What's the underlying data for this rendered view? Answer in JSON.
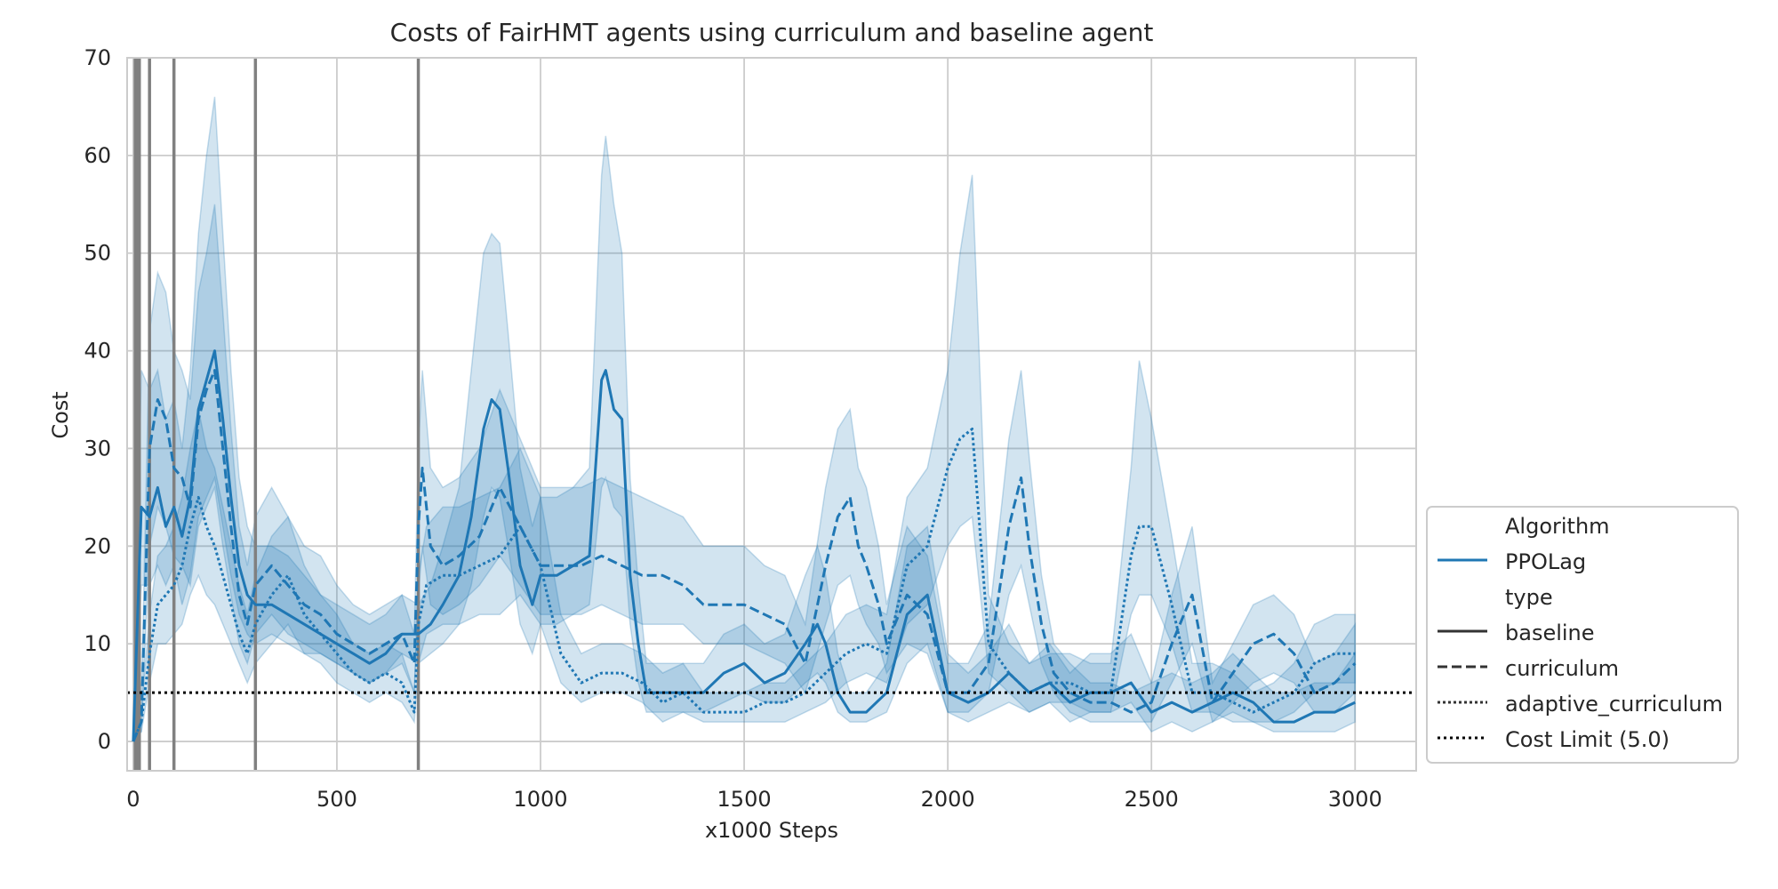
{
  "chart_data": {
    "type": "line",
    "title": "Costs of FairHMT agents using curriculum and baseline agent",
    "xlabel": "x1000 Steps",
    "ylabel": "Cost",
    "xlim": [
      -15,
      3150
    ],
    "ylim": [
      -3,
      70
    ],
    "xticks": [
      0,
      500,
      1000,
      1500,
      2000,
      2500,
      3000
    ],
    "yticks": [
      0,
      10,
      20,
      30,
      40,
      50,
      60,
      70
    ],
    "grid": true,
    "legend_position": "lower-right, outside plot",
    "colors": {
      "series": "#1f77b4",
      "band": "#1f77b4",
      "vlines": "#808080",
      "cost_limit": "#000000"
    },
    "cost_limit": 5.0,
    "vertical_lines_x": [
      5,
      10,
      15,
      40,
      100,
      300,
      700
    ],
    "legend": {
      "algorithm_heading": "Algorithm",
      "algorithm_entries": [
        "PPOLag"
      ],
      "type_heading": "type",
      "type_entries": [
        "baseline",
        "curriculum",
        "adaptive_curriculum"
      ],
      "cost_limit_entry": "Cost Limit (5.0)"
    },
    "series": [
      {
        "name": "baseline",
        "line_style": "solid",
        "x": [
          0,
          20,
          40,
          60,
          80,
          100,
          120,
          140,
          160,
          180,
          200,
          220,
          240,
          260,
          280,
          300,
          340,
          380,
          420,
          460,
          500,
          540,
          580,
          620,
          660,
          700,
          730,
          760,
          800,
          830,
          860,
          880,
          900,
          920,
          950,
          980,
          1000,
          1040,
          1080,
          1120,
          1150,
          1160,
          1180,
          1200,
          1220,
          1240,
          1260,
          1300,
          1350,
          1400,
          1450,
          1500,
          1550,
          1600,
          1650,
          1680,
          1700,
          1730,
          1760,
          1800,
          1850,
          1900,
          1950,
          2000,
          2050,
          2100,
          2150,
          2200,
          2250,
          2300,
          2350,
          2400,
          2450,
          2500,
          2550,
          2600,
          2650,
          2700,
          2750,
          2800,
          2850,
          2900,
          2950,
          3000
        ],
        "y": [
          0,
          24,
          23,
          26,
          22,
          24,
          21,
          25,
          34,
          37,
          40,
          33,
          25,
          18,
          15,
          14,
          14,
          13,
          12,
          11,
          10,
          9,
          8,
          9,
          11,
          11,
          12,
          14,
          17,
          23,
          32,
          35,
          34,
          28,
          18,
          14,
          17,
          17,
          18,
          19,
          37,
          38,
          34,
          33,
          17,
          10,
          5,
          5,
          5,
          5,
          7,
          8,
          6,
          7,
          10,
          12,
          10,
          5,
          3,
          3,
          5,
          13,
          15,
          5,
          4,
          5,
          7,
          5,
          6,
          4,
          5,
          5,
          6,
          3,
          4,
          3,
          4,
          5,
          4,
          2,
          2,
          3,
          3,
          4
        ],
        "band_low": [
          0,
          16,
          16,
          18,
          16,
          18,
          14,
          17,
          23,
          25,
          27,
          22,
          17,
          13,
          11,
          10,
          11,
          10,
          9,
          9,
          8,
          7,
          6,
          7,
          9,
          8,
          9,
          10,
          12,
          16,
          23,
          26,
          25,
          20,
          12,
          9,
          12,
          12,
          13,
          14,
          26,
          27,
          24,
          23,
          12,
          6,
          3,
          3,
          3,
          3,
          4,
          5,
          4,
          4,
          6,
          7,
          6,
          3,
          2,
          2,
          3,
          8,
          10,
          3,
          2,
          3,
          4,
          3,
          4,
          2,
          3,
          3,
          4,
          1,
          2,
          1,
          2,
          3,
          2,
          1,
          1,
          1,
          1,
          2
        ],
        "band_high": [
          0,
          38,
          36,
          38,
          33,
          35,
          30,
          38,
          52,
          60,
          66,
          52,
          38,
          27,
          22,
          20,
          20,
          19,
          17,
          15,
          14,
          13,
          12,
          13,
          15,
          14,
          16,
          20,
          26,
          38,
          50,
          52,
          51,
          42,
          28,
          22,
          25,
          25,
          26,
          28,
          58,
          62,
          55,
          50,
          27,
          16,
          8,
          8,
          8,
          8,
          11,
          12,
          10,
          11,
          17,
          20,
          17,
          9,
          5,
          5,
          8,
          20,
          22,
          9,
          7,
          9,
          12,
          8,
          10,
          7,
          9,
          9,
          11,
          6,
          7,
          6,
          7,
          9,
          7,
          5,
          5,
          6,
          6,
          9
        ]
      },
      {
        "name": "curriculum",
        "line_style": "dashed",
        "x": [
          0,
          20,
          40,
          60,
          80,
          100,
          120,
          140,
          160,
          180,
          200,
          220,
          240,
          260,
          280,
          300,
          340,
          380,
          420,
          460,
          500,
          540,
          580,
          620,
          660,
          690,
          700,
          710,
          730,
          760,
          800,
          850,
          900,
          950,
          1000,
          1050,
          1100,
          1150,
          1200,
          1250,
          1300,
          1350,
          1400,
          1450,
          1500,
          1550,
          1600,
          1650,
          1700,
          1730,
          1760,
          1780,
          1800,
          1830,
          1850,
          1900,
          1950,
          2000,
          2050,
          2100,
          2150,
          2180,
          2200,
          2230,
          2260,
          2300,
          2350,
          2400,
          2450,
          2500,
          2550,
          2600,
          2650,
          2700,
          2750,
          2800,
          2850,
          2900,
          2950,
          3000
        ],
        "y": [
          0,
          2,
          30,
          35,
          33,
          28,
          27,
          24,
          33,
          36,
          38,
          30,
          22,
          15,
          12,
          16,
          18,
          16,
          14,
          13,
          11,
          10,
          9,
          10,
          11,
          8,
          22,
          28,
          20,
          18,
          19,
          21,
          26,
          22,
          18,
          18,
          18,
          19,
          18,
          17,
          17,
          16,
          14,
          14,
          14,
          13,
          12,
          8,
          18,
          23,
          25,
          20,
          18,
          14,
          10,
          15,
          13,
          5,
          5,
          8,
          22,
          27,
          20,
          12,
          7,
          5,
          4,
          4,
          3,
          4,
          10,
          15,
          4,
          7,
          10,
          11,
          9,
          5,
          6,
          8
        ],
        "band_low": [
          0,
          1,
          20,
          24,
          22,
          19,
          18,
          16,
          22,
          24,
          26,
          20,
          15,
          10,
          8,
          11,
          13,
          11,
          10,
          9,
          8,
          7,
          6,
          7,
          8,
          5,
          15,
          20,
          14,
          13,
          14,
          16,
          19,
          16,
          13,
          13,
          13,
          14,
          13,
          12,
          12,
          12,
          10,
          10,
          10,
          9,
          8,
          5,
          12,
          16,
          17,
          14,
          12,
          10,
          7,
          10,
          9,
          3,
          3,
          5,
          15,
          18,
          14,
          8,
          5,
          3,
          2,
          2,
          2,
          2,
          6,
          10,
          2,
          4,
          6,
          7,
          6,
          3,
          3,
          5
        ],
        "band_high": [
          0,
          4,
          42,
          48,
          46,
          40,
          38,
          35,
          46,
          50,
          55,
          44,
          32,
          22,
          18,
          23,
          26,
          23,
          20,
          19,
          16,
          14,
          13,
          14,
          15,
          11,
          30,
          38,
          28,
          26,
          27,
          30,
          36,
          31,
          26,
          26,
          26,
          27,
          26,
          25,
          24,
          23,
          20,
          20,
          20,
          18,
          17,
          12,
          26,
          32,
          34,
          28,
          26,
          20,
          14,
          22,
          19,
          8,
          8,
          12,
          31,
          38,
          29,
          17,
          10,
          8,
          6,
          6,
          5,
          6,
          15,
          22,
          6,
          10,
          14,
          15,
          13,
          8,
          9,
          12
        ]
      },
      {
        "name": "adaptive_curriculum",
        "line_style": "dotted",
        "x": [
          0,
          20,
          40,
          60,
          80,
          100,
          120,
          140,
          160,
          180,
          200,
          220,
          240,
          260,
          280,
          300,
          340,
          380,
          420,
          460,
          500,
          540,
          580,
          620,
          660,
          690,
          700,
          720,
          760,
          800,
          850,
          900,
          950,
          1000,
          1050,
          1100,
          1150,
          1200,
          1250,
          1300,
          1350,
          1400,
          1450,
          1500,
          1550,
          1600,
          1650,
          1700,
          1750,
          1800,
          1850,
          1900,
          1950,
          2000,
          2030,
          2060,
          2100,
          2150,
          2200,
          2250,
          2300,
          2350,
          2400,
          2450,
          2470,
          2500,
          2550,
          2600,
          2650,
          2700,
          2750,
          2800,
          2850,
          2900,
          2950,
          3000
        ],
        "y": [
          0,
          2,
          9,
          14,
          15,
          16,
          18,
          22,
          25,
          22,
          20,
          17,
          14,
          11,
          9,
          12,
          15,
          17,
          13,
          11,
          9,
          7,
          6,
          7,
          6,
          3,
          12,
          16,
          17,
          17,
          18,
          19,
          22,
          18,
          9,
          6,
          7,
          7,
          6,
          4,
          5,
          3,
          3,
          3,
          4,
          4,
          5,
          7,
          9,
          10,
          9,
          18,
          20,
          28,
          31,
          32,
          10,
          7,
          5,
          6,
          6,
          5,
          5,
          19,
          22,
          22,
          14,
          5,
          5,
          4,
          3,
          4,
          5,
          8,
          9,
          9
        ],
        "band_low": [
          0,
          1,
          6,
          10,
          10,
          11,
          12,
          15,
          17,
          15,
          14,
          12,
          10,
          8,
          6,
          8,
          10,
          12,
          9,
          8,
          6,
          5,
          4,
          5,
          4,
          2,
          8,
          11,
          12,
          12,
          13,
          13,
          15,
          12,
          6,
          4,
          5,
          5,
          4,
          2,
          3,
          2,
          2,
          2,
          2,
          2,
          3,
          4,
          6,
          7,
          6,
          12,
          14,
          20,
          22,
          23,
          7,
          5,
          3,
          4,
          4,
          3,
          3,
          13,
          15,
          15,
          10,
          3,
          3,
          2,
          2,
          2,
          3,
          5,
          6,
          6
        ],
        "band_high": [
          0,
          3,
          13,
          19,
          20,
          22,
          25,
          30,
          34,
          30,
          28,
          24,
          20,
          16,
          13,
          17,
          21,
          23,
          18,
          15,
          13,
          10,
          9,
          10,
          9,
          5,
          17,
          22,
          24,
          24,
          25,
          26,
          30,
          25,
          13,
          9,
          10,
          10,
          9,
          7,
          8,
          5,
          5,
          5,
          6,
          6,
          8,
          10,
          13,
          14,
          13,
          25,
          28,
          38,
          50,
          58,
          15,
          10,
          8,
          9,
          9,
          8,
          8,
          28,
          39,
          33,
          21,
          8,
          8,
          7,
          5,
          6,
          8,
          12,
          13,
          13
        ]
      }
    ]
  }
}
